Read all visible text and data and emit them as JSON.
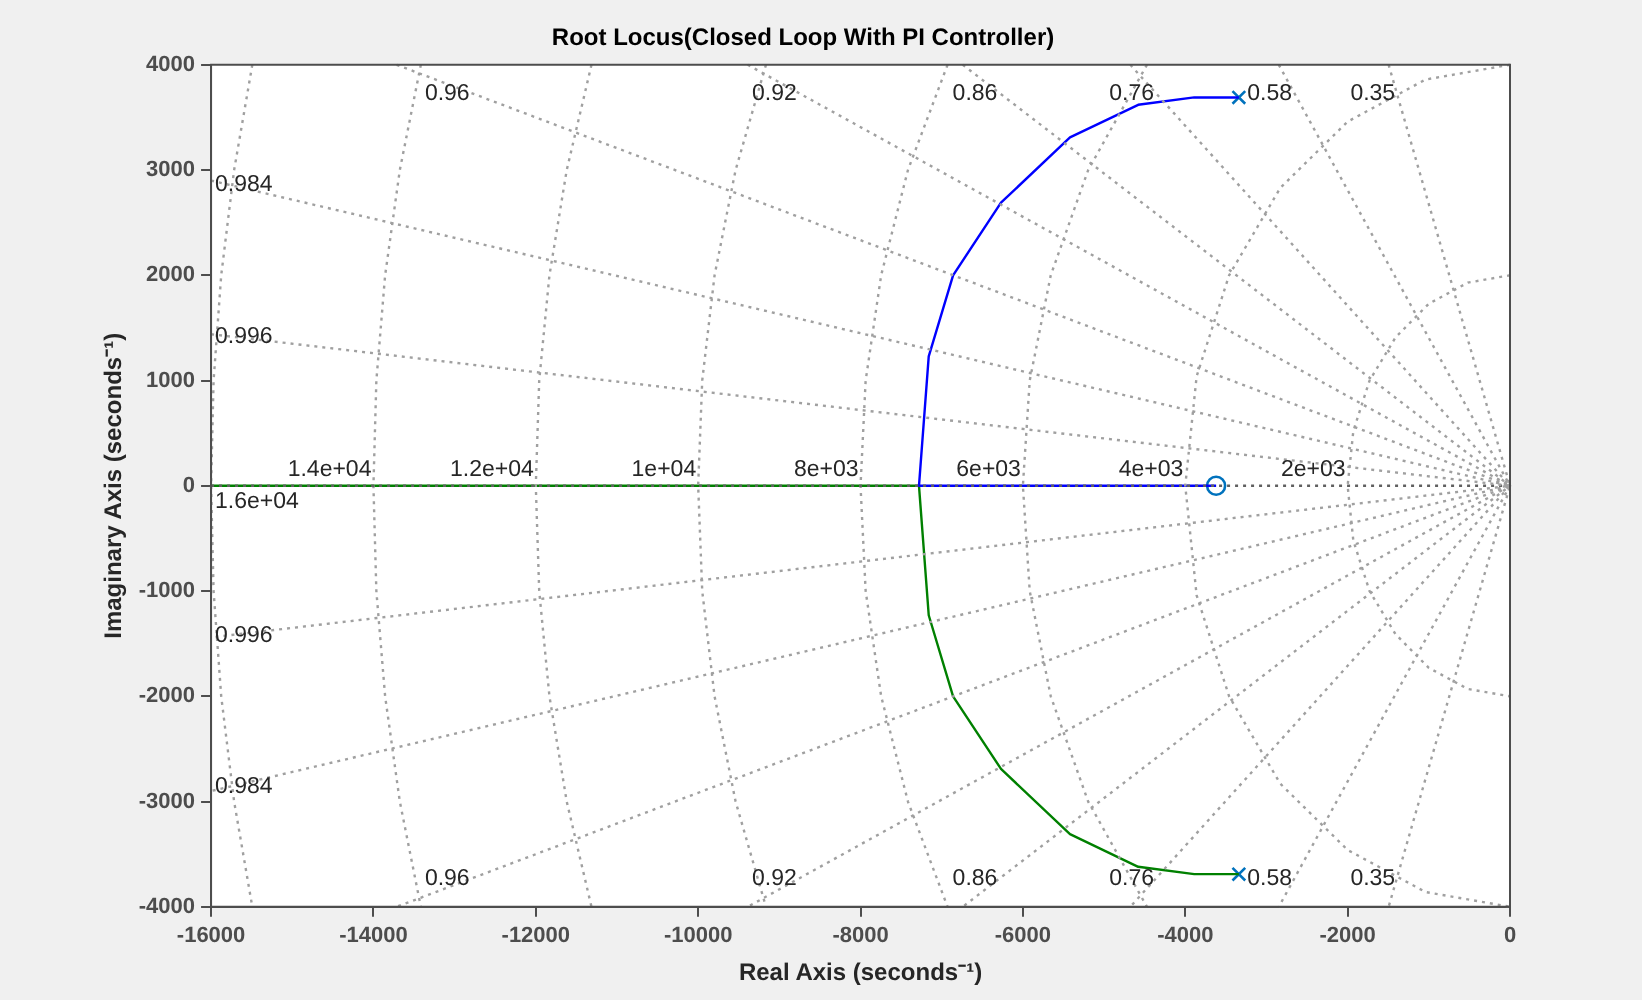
{
  "chart_data": {
    "type": "line",
    "title": "Root Locus(Closed Loop With PI Controller)",
    "xlabel": "Real Axis (seconds⁻¹)",
    "ylabel": "Imaginary Axis (seconds⁻¹)",
    "xlim": [
      -16000,
      0
    ],
    "ylim": [
      -4000,
      4000
    ],
    "xticks": [
      -16000,
      -14000,
      -12000,
      -10000,
      -8000,
      -6000,
      -4000,
      -2000,
      0
    ],
    "yticks": [
      -4000,
      -3000,
      -2000,
      -1000,
      0,
      1000,
      2000,
      3000,
      4000
    ],
    "legend": false,
    "series": [
      {
        "color": "#a0a0a0",
        "line_style": "dotted",
        "marker": "none",
        "x": [
          -1495,
          0,
          -1495
        ],
        "values": [
          4000,
          0,
          -4000
        ]
      },
      {
        "color": "#a0a0a0",
        "line_style": "dotted",
        "marker": "none",
        "x": [
          -2848,
          0,
          -2848
        ],
        "values": [
          4000,
          0,
          -4000
        ]
      },
      {
        "color": "#a0a0a0",
        "line_style": "dotted",
        "marker": "none",
        "x": [
          -4677,
          0,
          -4677
        ],
        "values": [
          4000,
          0,
          -4000
        ]
      },
      {
        "color": "#a0a0a0",
        "line_style": "dotted",
        "marker": "none",
        "x": [
          -6741,
          0,
          -6741
        ],
        "values": [
          4000,
          0,
          -4000
        ]
      },
      {
        "color": "#a0a0a0",
        "line_style": "dotted",
        "marker": "none",
        "x": [
          -9390,
          0,
          -9390
        ],
        "values": [
          4000,
          0,
          -4000
        ]
      },
      {
        "color": "#a0a0a0",
        "line_style": "dotted",
        "marker": "none",
        "x": [
          -13714,
          0,
          -13714
        ],
        "values": [
          4000,
          0,
          -4000
        ]
      },
      {
        "color": "#a0a0a0",
        "line_style": "dotted",
        "marker": "none",
        "x": [
          -16000,
          0,
          -16000
        ],
        "values": [
          2900,
          0,
          -2900
        ]
      },
      {
        "color": "#a0a0a0",
        "line_style": "dotted",
        "marker": "none",
        "x": [
          -16000,
          0,
          -16000
        ],
        "values": [
          1440,
          0,
          -1440
        ]
      },
      {
        "color": "#606060",
        "line_style": "dotted",
        "marker": "none",
        "x": [
          -16000,
          0
        ],
        "values": [
          0,
          0
        ]
      },
      {
        "color": "#a0a0a0",
        "line_style": "dotted",
        "marker": "none",
        "x": [
          0,
          -520,
          -1000,
          -1410,
          -1730,
          -1930,
          -2000,
          -1930,
          -1730,
          -1410,
          -1000,
          -520,
          0
        ],
        "values": [
          2000,
          1930,
          1730,
          1410,
          1000,
          520,
          0,
          -520,
          -1000,
          -1410,
          -1730,
          -1930,
          -2000
        ]
      },
      {
        "color": "#a0a0a0",
        "line_style": "dotted",
        "marker": "none",
        "x": [
          0,
          -1040,
          -2000,
          -2830,
          -3460,
          -3860,
          -4000,
          -3860,
          -3460,
          -2830,
          -2000,
          -1040,
          0
        ],
        "values": [
          4000,
          3860,
          3460,
          2830,
          2000,
          1040,
          0,
          -1040,
          -2000,
          -2830,
          -3460,
          -3860,
          -4000
        ]
      },
      {
        "color": "#a0a0a0",
        "line_style": "dotted",
        "marker": "none",
        "x": [
          -4472,
          -5196,
          -5657,
          -5916,
          -6000,
          -5916,
          -5657,
          -5196,
          -4472
        ],
        "values": [
          4000,
          3000,
          2000,
          1000,
          0,
          -1000,
          -2000,
          -3000,
          -4000
        ]
      },
      {
        "color": "#a0a0a0",
        "line_style": "dotted",
        "marker": "none",
        "x": [
          -6928,
          -7416,
          -7746,
          -7937,
          -8000,
          -7937,
          -7746,
          -7416,
          -6928
        ],
        "values": [
          4000,
          3000,
          2000,
          1000,
          0,
          -1000,
          -2000,
          -3000,
          -4000
        ]
      },
      {
        "color": "#a0a0a0",
        "line_style": "dotted",
        "marker": "none",
        "x": [
          -9165,
          -9539,
          -9798,
          -9950,
          -10000,
          -9950,
          -9798,
          -9539,
          -9165
        ],
        "values": [
          4000,
          3000,
          2000,
          1000,
          0,
          -1000,
          -2000,
          -3000,
          -4000
        ]
      },
      {
        "color": "#a0a0a0",
        "line_style": "dotted",
        "marker": "none",
        "x": [
          -11314,
          -11619,
          -11832,
          -11958,
          -12000,
          -11958,
          -11832,
          -11619,
          -11314
        ],
        "values": [
          4000,
          3000,
          2000,
          1000,
          0,
          -1000,
          -2000,
          -3000,
          -4000
        ]
      },
      {
        "color": "#a0a0a0",
        "line_style": "dotted",
        "marker": "none",
        "x": [
          -13416,
          -13675,
          -13856,
          -13964,
          -14000,
          -13964,
          -13856,
          -13675,
          -13416
        ],
        "values": [
          4000,
          3000,
          2000,
          1000,
          0,
          -1000,
          -2000,
          -3000,
          -4000
        ]
      },
      {
        "color": "#a0a0a0",
        "line_style": "dotted",
        "marker": "none",
        "x": [
          -15492,
          -15716,
          -15875,
          -15969,
          -16000,
          -15969,
          -15875,
          -15716,
          -15492
        ],
        "values": [
          4000,
          3000,
          2000,
          1000,
          0,
          -1000,
          -2000,
          -3000,
          -4000
        ]
      },
      {
        "color": "#0000ff",
        "line_style": "solid",
        "marker": "none",
        "x": [
          -3340,
          -3890,
          -4580,
          -5420,
          -6270,
          -6860,
          -7160,
          -7280,
          -3620
        ],
        "values": [
          3690,
          3690,
          3620,
          3310,
          2690,
          2000,
          1230,
          0,
          0
        ]
      },
      {
        "color": "#008000",
        "line_style": "solid",
        "marker": "none",
        "x": [
          -3340,
          -3890,
          -4580,
          -5420,
          -6270,
          -6860,
          -7160,
          -7280,
          -16000
        ],
        "values": [
          -3690,
          -3690,
          -3620,
          -3310,
          -2690,
          -2000,
          -1230,
          0,
          0
        ]
      },
      {
        "type": "scatter",
        "color": "#0072bd",
        "marker": "cross",
        "x": [
          -3340,
          -3340
        ],
        "values": [
          3690,
          -3690
        ]
      },
      {
        "type": "scatter",
        "color": "#0072bd",
        "marker": "circle",
        "x": [
          -3620
        ],
        "values": [
          0
        ]
      }
    ],
    "annotations": [
      {
        "text": "0.96",
        "x": -12790,
        "y": 3730
      },
      {
        "text": "0.92",
        "x": -8760,
        "y": 3730
      },
      {
        "text": "0.86",
        "x": -6290,
        "y": 3730
      },
      {
        "text": "0.76",
        "x": -4360,
        "y": 3730
      },
      {
        "text": "0.58",
        "x": -2660,
        "y": 3730
      },
      {
        "text": "0.35",
        "x": -1390,
        "y": 3730
      },
      {
        "text": "0.984",
        "x": -15790,
        "y": 2860
      },
      {
        "text": "0.996",
        "x": -15810,
        "y": 1420
      },
      {
        "text": "1.6e+04",
        "x": -16000,
        "y": -150
      },
      {
        "text": "1.4e+04",
        "x": -14000,
        "y": 150
      },
      {
        "text": "1.2e+04",
        "x": -12000,
        "y": 150
      },
      {
        "text": "1e+04",
        "x": -10000,
        "y": 150
      },
      {
        "text": "8e+03",
        "x": -8000,
        "y": 150
      },
      {
        "text": "6e+03",
        "x": -6000,
        "y": 150
      },
      {
        "text": "4e+03",
        "x": -4000,
        "y": 150
      },
      {
        "text": "2e+03",
        "x": -2000,
        "y": 150
      },
      {
        "text": "0.996",
        "x": -15810,
        "y": -1420
      },
      {
        "text": "0.984",
        "x": -15790,
        "y": -2860
      },
      {
        "text": "0.96",
        "x": -12790,
        "y": -3730
      },
      {
        "text": "0.92",
        "x": -8760,
        "y": -3730
      },
      {
        "text": "0.86",
        "x": -6290,
        "y": -3730
      },
      {
        "text": "0.76",
        "x": -4360,
        "y": -3730
      },
      {
        "text": "0.58",
        "x": -2660,
        "y": -3730
      },
      {
        "text": "0.35",
        "x": -1390,
        "y": -3730
      }
    ]
  }
}
